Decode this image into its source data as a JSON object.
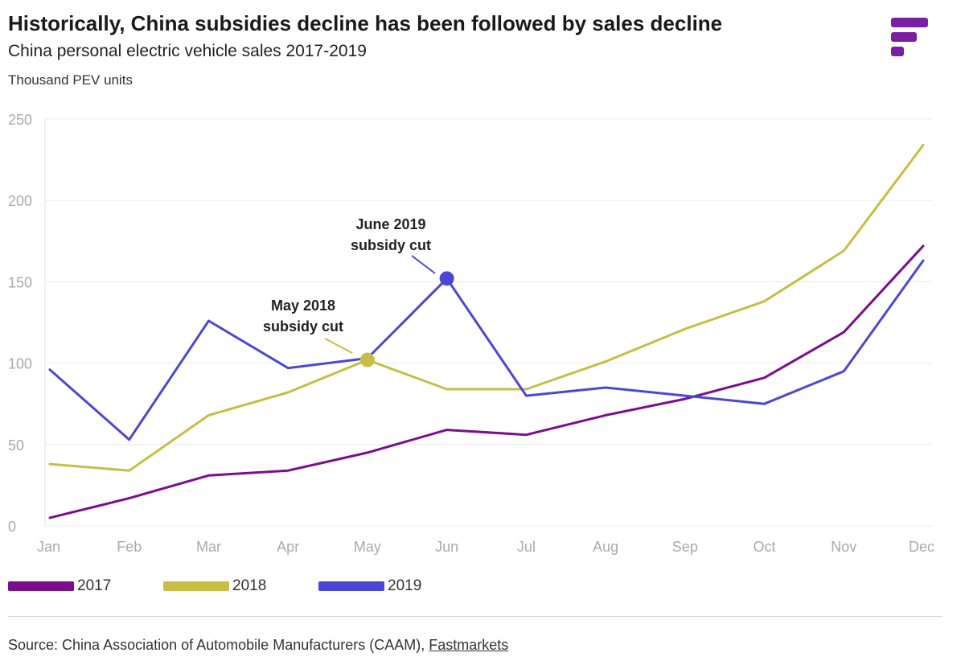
{
  "header": {
    "title": "Historically, China subsidies decline has been followed by sales decline",
    "subtitle": "China personal electric vehicle sales 2017-2019",
    "unit_label": "Thousand PEV units"
  },
  "logo": {
    "icon": "fastmarkets-logo-icon",
    "color": "#7b1fa2"
  },
  "chart_data": {
    "type": "line",
    "title": "Historically, China subsidies decline has been followed by sales decline",
    "subtitle": "China personal electric vehicle sales 2017-2019",
    "ylabel": "Thousand PEV units",
    "xlabel": "",
    "categories": [
      "Jan",
      "Feb",
      "Mar",
      "Apr",
      "May",
      "Jun",
      "Jul",
      "Aug",
      "Sep",
      "Oct",
      "Nov",
      "Dec"
    ],
    "ylim": [
      0,
      250
    ],
    "yticks": [
      0,
      50,
      100,
      150,
      200,
      250
    ],
    "grid": true,
    "legend_position": "bottom-left",
    "series": [
      {
        "name": "2017",
        "color": "#7b0d8f",
        "values": [
          5,
          17,
          31,
          34,
          45,
          59,
          56,
          68,
          78,
          91,
          119,
          172
        ]
      },
      {
        "name": "2018",
        "color": "#c9bd45",
        "values": [
          38,
          34,
          68,
          82,
          102,
          84,
          84,
          101,
          121,
          138,
          169,
          234
        ]
      },
      {
        "name": "2019",
        "color": "#4b47d6",
        "values": [
          96,
          53,
          126,
          97,
          103,
          152,
          80,
          85,
          80,
          75,
          95,
          163
        ]
      }
    ],
    "annotations": [
      {
        "series": "2018",
        "category": "May",
        "value": 102,
        "lines": [
          "May 2018",
          "subsidy cut"
        ]
      },
      {
        "series": "2019",
        "category": "Jun",
        "value": 152,
        "lines": [
          "June 2019",
          "subsidy cut"
        ]
      }
    ]
  },
  "footer": {
    "source_prefix": "Source: China Association of Automobile Manufacturers (CAAM), ",
    "source_link": "Fastmarkets"
  }
}
